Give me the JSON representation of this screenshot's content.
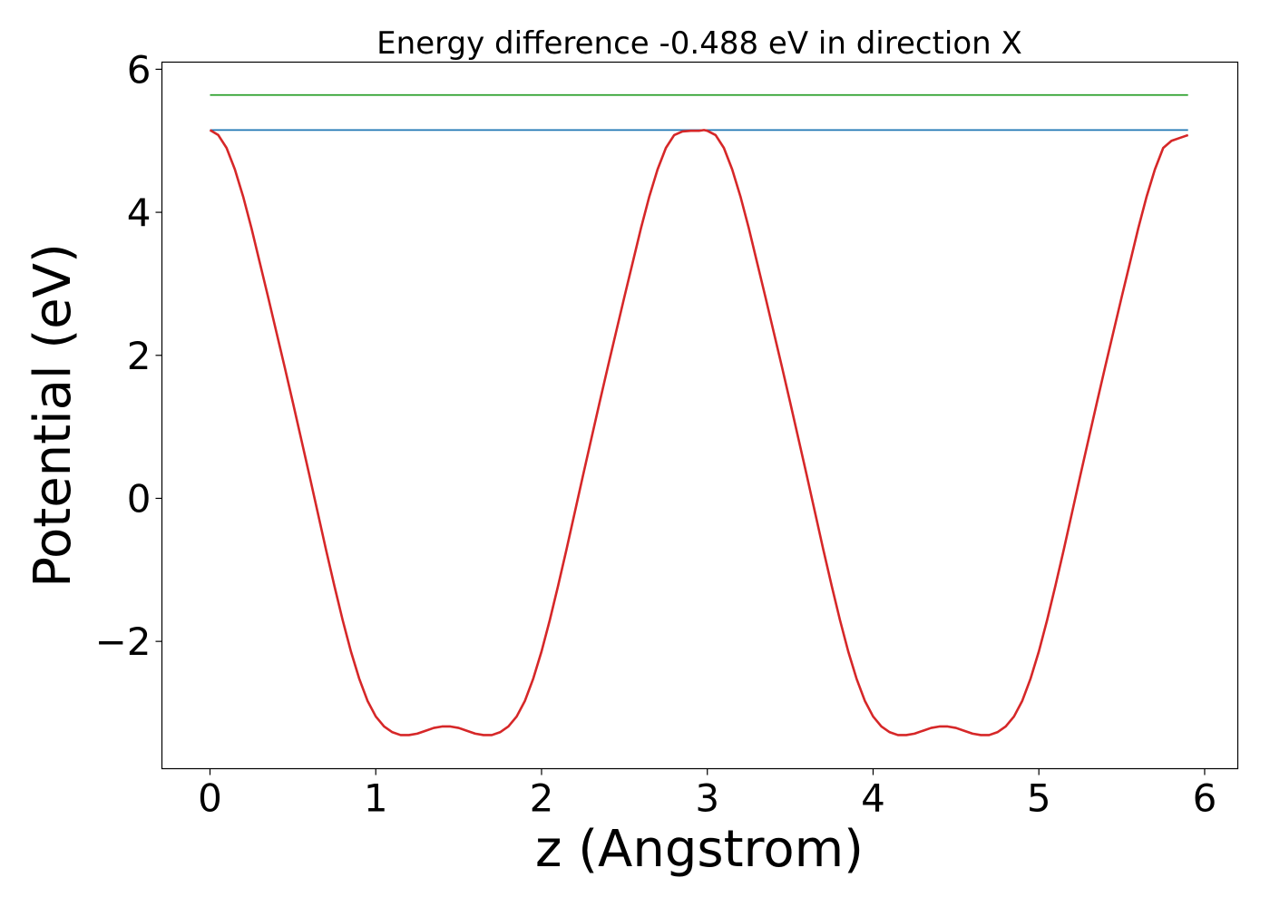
{
  "chart_data": {
    "type": "line",
    "title": "Energy difference -0.488 eV in direction X",
    "xlabel": "z (Angstrom)",
    "ylabel": "Potential (eV)",
    "xlim": [
      -0.29,
      6.2
    ],
    "ylim": [
      -3.78,
      6.1
    ],
    "xticks": [
      0,
      1,
      2,
      3,
      4,
      5,
      6
    ],
    "xtick_labels": [
      "0",
      "1",
      "2",
      "3",
      "4",
      "5",
      "6"
    ],
    "yticks": [
      -2,
      0,
      2,
      4,
      6
    ],
    "ytick_labels": [
      "−2",
      "0",
      "2",
      "4",
      "6"
    ],
    "grid": false,
    "series": [
      {
        "color": "#d62728",
        "x": [
          0.0,
          0.05,
          0.1,
          0.15,
          0.2,
          0.25,
          0.3,
          0.35,
          0.4,
          0.45,
          0.5,
          0.55,
          0.6,
          0.65,
          0.7,
          0.75,
          0.8,
          0.85,
          0.9,
          0.95,
          1.0,
          1.05,
          1.1,
          1.15,
          1.2,
          1.25,
          1.3,
          1.35,
          1.4,
          1.45,
          1.5,
          1.55,
          1.6,
          1.65,
          1.7,
          1.75,
          1.8,
          1.85,
          1.9,
          1.95,
          2.0,
          2.05,
          2.1,
          2.15,
          2.2,
          2.25,
          2.3,
          2.35,
          2.4,
          2.45,
          2.5,
          2.55,
          2.6,
          2.65,
          2.7,
          2.75,
          2.8,
          2.85,
          2.9,
          2.95,
          2.98,
          3.0,
          3.05,
          3.1,
          3.15,
          3.2,
          3.25,
          3.3,
          3.35,
          3.4,
          3.45,
          3.5,
          3.55,
          3.6,
          3.65,
          3.7,
          3.75,
          3.8,
          3.85,
          3.9,
          3.95,
          4.0,
          4.05,
          4.1,
          4.15,
          4.2,
          4.25,
          4.3,
          4.35,
          4.4,
          4.45,
          4.5,
          4.55,
          4.6,
          4.65,
          4.7,
          4.75,
          4.8,
          4.85,
          4.9,
          4.95,
          5.0,
          5.05,
          5.1,
          5.15,
          5.2,
          5.25,
          5.3,
          5.35,
          5.4,
          5.45,
          5.5,
          5.55,
          5.6,
          5.65,
          5.7,
          5.75,
          5.8,
          5.85,
          5.9
        ],
        "y": [
          5.15,
          5.08,
          4.9,
          4.6,
          4.22,
          3.78,
          3.3,
          2.82,
          2.33,
          1.84,
          1.34,
          0.83,
          0.32,
          -0.2,
          -0.72,
          -1.22,
          -1.7,
          -2.14,
          -2.52,
          -2.83,
          -3.05,
          -3.19,
          -3.27,
          -3.31,
          -3.31,
          -3.29,
          -3.25,
          -3.21,
          -3.19,
          -3.19,
          -3.21,
          -3.25,
          -3.29,
          -3.31,
          -3.31,
          -3.27,
          -3.19,
          -3.05,
          -2.83,
          -2.52,
          -2.14,
          -1.7,
          -1.22,
          -0.72,
          -0.2,
          0.32,
          0.83,
          1.34,
          1.84,
          2.33,
          2.82,
          3.3,
          3.78,
          4.22,
          4.6,
          4.9,
          5.08,
          5.13,
          5.14,
          5.14,
          5.15,
          5.14,
          5.08,
          4.9,
          4.6,
          4.22,
          3.78,
          3.3,
          2.82,
          2.33,
          1.84,
          1.34,
          0.83,
          0.32,
          -0.2,
          -0.72,
          -1.22,
          -1.7,
          -2.14,
          -2.52,
          -2.83,
          -3.05,
          -3.19,
          -3.27,
          -3.31,
          -3.31,
          -3.29,
          -3.25,
          -3.21,
          -3.19,
          -3.19,
          -3.21,
          -3.25,
          -3.29,
          -3.31,
          -3.31,
          -3.27,
          -3.19,
          -3.05,
          -2.83,
          -2.52,
          -2.14,
          -1.7,
          -1.22,
          -0.72,
          -0.2,
          0.32,
          0.83,
          1.34,
          1.84,
          2.33,
          2.82,
          3.3,
          3.78,
          4.22,
          4.6,
          4.9,
          5.0,
          5.04,
          5.08
        ]
      },
      {
        "color": "#1f77b4",
        "x": [
          0.0,
          5.9
        ],
        "y": [
          5.15,
          5.15
        ]
      },
      {
        "color": "#2ca02c",
        "x": [
          0.0,
          5.9
        ],
        "y": [
          5.64,
          5.64
        ]
      }
    ]
  }
}
